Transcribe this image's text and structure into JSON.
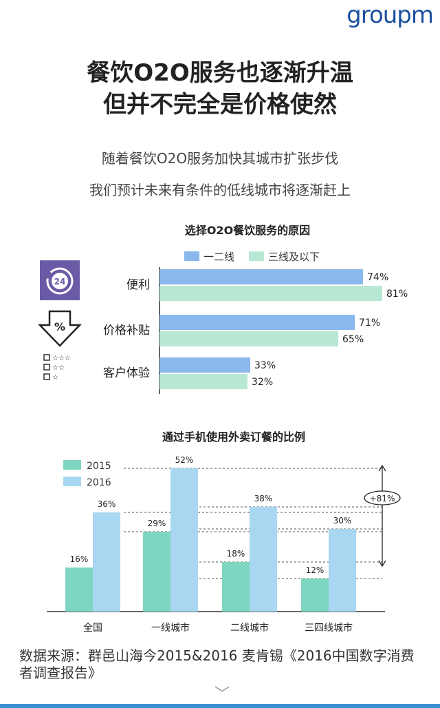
{
  "logo": "groupm",
  "headline": [
    "餐饮O2O服务也逐渐升温",
    "但并不完全是价格使然"
  ],
  "subtitle": [
    "随着餐饮O2O服务加快其城市扩张步伐",
    "我们预计未来有条件的低线城市将逐渐赶上"
  ],
  "source": "数据来源：群邑山海今2015&2016 麦肯锡《2016中国数字消费者调查报告》",
  "icons": [
    "24-hour-clock-icon",
    "percent-down-arrow-icon",
    "rating-checklist-icon"
  ],
  "chart_data": [
    {
      "type": "bar",
      "orientation": "horizontal",
      "title": "选择O2O餐饮服务的原因",
      "categories": [
        "便利",
        "价格补贴",
        "客户体验"
      ],
      "series": [
        {
          "name": "一二线",
          "values": [
            74,
            71,
            33
          ],
          "labels": [
            "74%",
            "71%",
            "33%"
          ],
          "color": "#8ab8ec"
        },
        {
          "name": "三线及以下",
          "values": [
            81,
            65,
            32
          ],
          "labels": [
            "81%",
            "65%",
            "32%"
          ],
          "color": "#b8e8d4"
        }
      ],
      "xlim": [
        0,
        100
      ],
      "legend": "top",
      "grid": false
    },
    {
      "type": "bar",
      "orientation": "vertical",
      "title": "通过手机使用外卖订餐的比例",
      "categories": [
        "全国",
        "一线城市",
        "二线城市",
        "三四线城市"
      ],
      "series": [
        {
          "name": "2015",
          "values": [
            16,
            29,
            18,
            12
          ],
          "labels": [
            "16%",
            "29%",
            "18%",
            "12%"
          ],
          "color": "#7fd6c0"
        },
        {
          "name": "2016",
          "values": [
            36,
            52,
            38,
            30
          ],
          "labels": [
            "36%",
            "52%",
            "38%",
            "30%"
          ],
          "color": "#a9d6f0"
        }
      ],
      "ylim": [
        0,
        60
      ],
      "legend": "top-left",
      "grid": false,
      "annotation": "+81%"
    }
  ]
}
